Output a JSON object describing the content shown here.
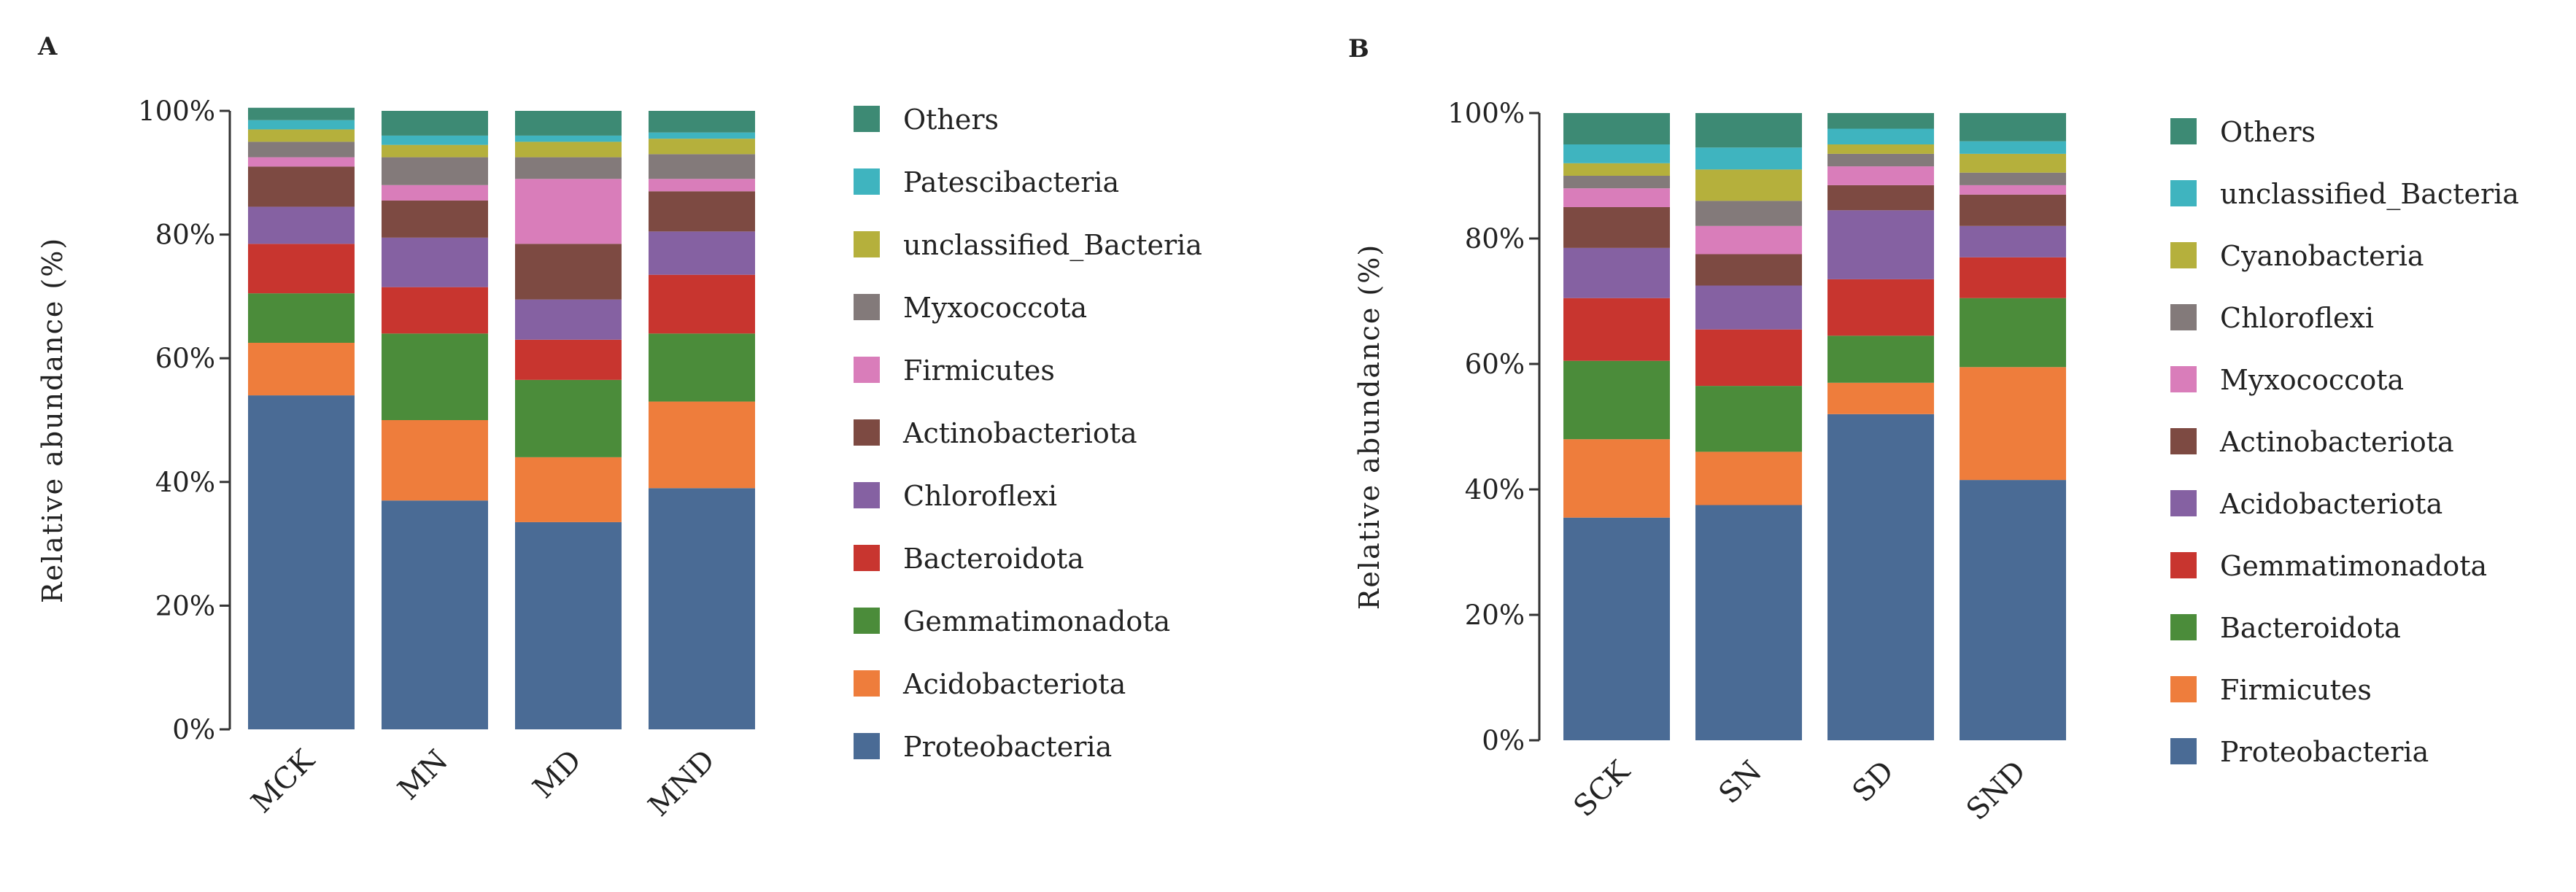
{
  "chart_data": [
    {
      "type": "bar",
      "stacked": true,
      "panel_label": "A",
      "ylabel": "Relative abundance (%)",
      "xlabel": "",
      "ylim": [
        0,
        100
      ],
      "yticks": [
        "0%",
        "20%",
        "40%",
        "60%",
        "80%",
        "100%"
      ],
      "categories": [
        "MCK",
        "MN",
        "MD",
        "MND"
      ],
      "legend_position": "right",
      "series": [
        {
          "name": "Proteobacteria",
          "color": "#4a6b95",
          "values": [
            54,
            37,
            33.5,
            39
          ]
        },
        {
          "name": "Acidobacteriota",
          "color": "#ee7d3c",
          "values": [
            8.5,
            13,
            10.5,
            14
          ]
        },
        {
          "name": "Gemmatimonadota",
          "color": "#4b8c3a",
          "values": [
            8,
            14,
            12.5,
            11
          ]
        },
        {
          "name": "Bacteroidota",
          "color": "#c8352f",
          "values": [
            8,
            7.5,
            6.5,
            9.5
          ]
        },
        {
          "name": "Chloroflexi",
          "color": "#8561a2",
          "values": [
            6,
            8,
            6.5,
            7
          ]
        },
        {
          "name": "Actinobacteriota",
          "color": "#7d4a42",
          "values": [
            6.5,
            6,
            9,
            6.5
          ]
        },
        {
          "name": "Firmicutes",
          "color": "#d97dba",
          "values": [
            1.5,
            2.5,
            10.5,
            2
          ]
        },
        {
          "name": "Myxococcota",
          "color": "#837a7a",
          "values": [
            2.5,
            4.5,
            3.5,
            4
          ]
        },
        {
          "name": "unclassified_Bacteria",
          "color": "#b5b03c",
          "values": [
            2,
            2,
            2.5,
            2.5
          ]
        },
        {
          "name": "Patescibacteria",
          "color": "#3fb4bf",
          "values": [
            1.5,
            1.5,
            1,
            1
          ]
        },
        {
          "name": "Others",
          "color": "#3d8a74",
          "values": [
            2,
            4,
            4,
            3.5
          ]
        }
      ]
    },
    {
      "type": "bar",
      "stacked": true,
      "panel_label": "B",
      "ylabel": "Relative abundance (%)",
      "xlabel": "",
      "ylim": [
        0,
        100
      ],
      "yticks": [
        "0%",
        "20%",
        "40%",
        "60%",
        "80%",
        "100%"
      ],
      "categories": [
        "SCK",
        "SN",
        "SD",
        "SND"
      ],
      "legend_position": "right",
      "series": [
        {
          "name": "Proteobacteria",
          "color": "#4a6b95",
          "values": [
            35.5,
            37.5,
            52,
            41.5
          ]
        },
        {
          "name": "Firmicutes",
          "color": "#ee7d3c",
          "values": [
            12.5,
            8.5,
            5,
            18
          ]
        },
        {
          "name": "Bacteroidota",
          "color": "#4b8c3a",
          "values": [
            12.5,
            10.5,
            7.5,
            11
          ]
        },
        {
          "name": "Gemmatimonadota",
          "color": "#c8352f",
          "values": [
            10,
            9,
            9,
            6.5
          ]
        },
        {
          "name": "Acidobacteriota",
          "color": "#8561a2",
          "values": [
            8,
            7,
            11,
            5
          ]
        },
        {
          "name": "Actinobacteriota",
          "color": "#7d4a42",
          "values": [
            6.5,
            5,
            4,
            5
          ]
        },
        {
          "name": "Myxococcota",
          "color": "#d97dba",
          "values": [
            3,
            4.5,
            3,
            1.5
          ]
        },
        {
          "name": "Chloroflexi",
          "color": "#837a7a",
          "values": [
            2,
            4,
            2,
            2
          ]
        },
        {
          "name": "Cyanobacteria",
          "color": "#b5b03c",
          "values": [
            2,
            5,
            1.5,
            3
          ]
        },
        {
          "name": "unclassified_Bacteria",
          "color": "#3fb4bf",
          "values": [
            3,
            3.5,
            2.5,
            2
          ]
        },
        {
          "name": "Others",
          "color": "#3d8a74",
          "values": [
            5,
            5.5,
            2.5,
            4.5
          ]
        }
      ]
    }
  ]
}
